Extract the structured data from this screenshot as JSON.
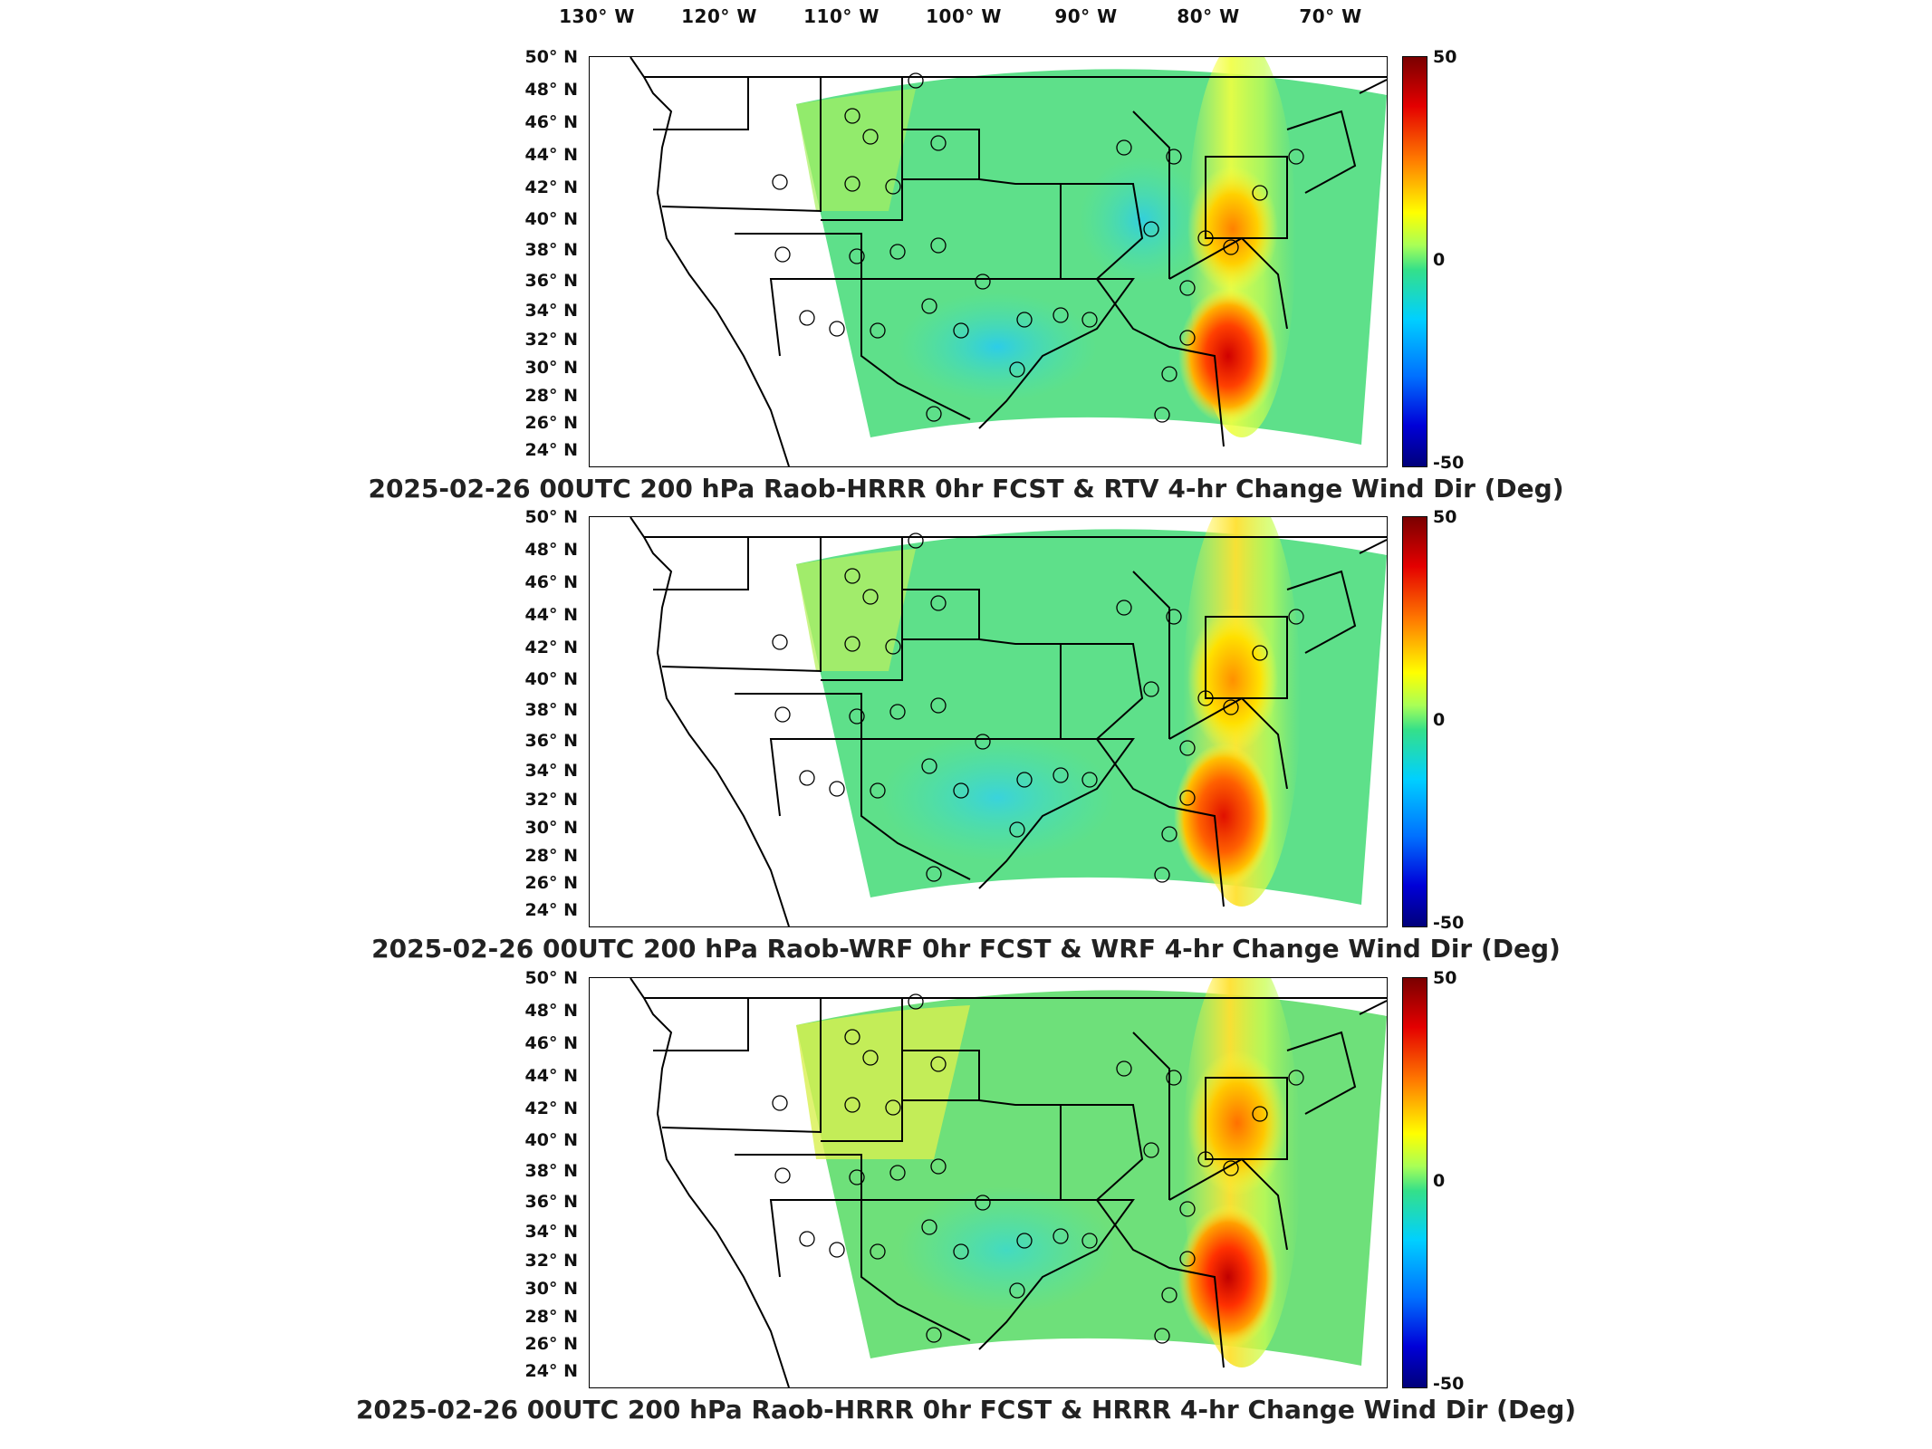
{
  "longitude_ticks": [
    "130° W",
    "120° W",
    "110° W",
    "100° W",
    "90° W",
    "80° W",
    "70° W"
  ],
  "latitude_ticks": [
    "50° N",
    "48° N",
    "46° N",
    "44° N",
    "42° N",
    "40° N",
    "38° N",
    "36° N",
    "34° N",
    "32° N",
    "30° N",
    "28° N",
    "26° N",
    "24° N"
  ],
  "colorbar": {
    "max": "50",
    "zero": "0",
    "min": "-50"
  },
  "colors": {
    "background_field": "#5ee08a",
    "cool": "#00d0ff",
    "warm": "#ffb000",
    "hot": "#e00000",
    "outline": "#000000"
  },
  "panels": [
    {
      "title": "2025-02-26 00UTC 200 hPa Raob-HRRR 0hr FCST & RTV 4-hr Change Wind Dir (Deg)"
    },
    {
      "title": "2025-02-26 00UTC 200 hPa Raob-WRF 0hr FCST & WRF 4-hr Change Wind Dir (Deg)"
    },
    {
      "title": "2025-02-26 00UTC 200 hPa Raob-HRRR 0hr FCST & HRRR 4-hr Change Wind Dir (Deg)"
    }
  ]
}
